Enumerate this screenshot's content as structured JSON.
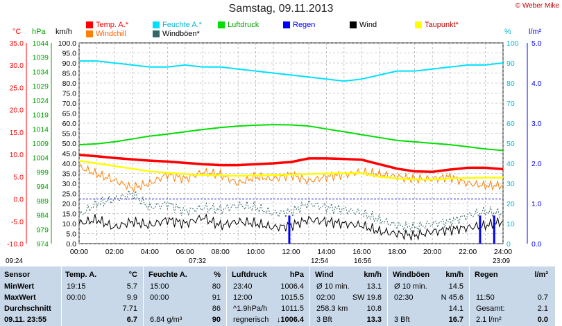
{
  "title": "Samstag, 09.11.2013",
  "copyright": "© Weber Mike",
  "legend": [
    {
      "label": "Temp. A.*",
      "color": "#ff0000"
    },
    {
      "label": "Feuchte A.*",
      "color": "#00e0ff"
    },
    {
      "label": "Luftdruck",
      "color": "#00dd00"
    },
    {
      "label": "Regen",
      "color": "#0000ff"
    },
    {
      "label": "Wind",
      "color": "#000000"
    },
    {
      "label": "Taupunkt*",
      "color": "#ffff00"
    },
    {
      "label": "Windchill",
      "color": "#ff8000"
    },
    {
      "label": "Windböen*",
      "color": "#336666"
    }
  ],
  "axis_heads": {
    "temp": "°C",
    "hpa": "hPa",
    "kmh": "km/h",
    "pct": "%",
    "rain": "l/m²"
  },
  "time_marks": {
    "left": "09:24",
    "sunrise": "07:32",
    "moonrise": "12:54",
    "sunset": "16:56",
    "moonset": "23:09"
  },
  "chart_data": {
    "type": "line",
    "x_labels": [
      "00:00",
      "02:00",
      "04:00",
      "06:00",
      "08:00",
      "10:00",
      "12:00",
      "14:00",
      "16:00",
      "18:00",
      "20:00",
      "22:00",
      "24:00"
    ],
    "axes": {
      "temp": {
        "min": -10,
        "max": 35,
        "ticks": [
          "35.0",
          "30.0",
          "25.0",
          "20.0",
          "15.0",
          "10.0",
          "5.0",
          "0.0",
          "-5.0",
          "-10.0"
        ]
      },
      "hpa": {
        "ticks": [
          "1044",
          "1039",
          "1034",
          "1029",
          "1024",
          "1019",
          "1014",
          "1009",
          "1004",
          "999",
          "994",
          "989",
          "984",
          "979",
          "974"
        ]
      },
      "kmh": {
        "min": 0,
        "max": 100,
        "ticks": [
          "100.0",
          "95.0",
          "90.0",
          "85.0",
          "80.0",
          "75.0",
          "70.0",
          "65.0",
          "60.0",
          "55.0",
          "50.0",
          "45.0",
          "40.0",
          "35.0",
          "30.0",
          "25.0",
          "20.0",
          "15.0",
          "10.0",
          "5.0",
          "0.0"
        ]
      },
      "pct": {
        "ticks": [
          "100",
          "90",
          "80",
          "70",
          "60",
          "50",
          "40",
          "30",
          "20",
          "10",
          "0"
        ]
      },
      "rain": {
        "ticks": [
          "5.0",
          "4.0",
          "3.0",
          "2.0",
          "1.0",
          "0.0"
        ]
      }
    },
    "series": [
      {
        "name": "Feuchte A.*",
        "axis": "pct",
        "x": [
          0,
          1,
          2,
          3,
          4,
          5,
          6,
          7,
          8,
          9,
          10,
          11,
          12,
          13,
          14,
          15,
          16,
          17,
          18,
          19,
          20,
          21,
          22,
          23,
          24
        ],
        "values": [
          91,
          91,
          90,
          89,
          88,
          88,
          89,
          88,
          88,
          87,
          86,
          85,
          84,
          83,
          82,
          81,
          82,
          84,
          86,
          86,
          87,
          88,
          89,
          89,
          90
        ]
      },
      {
        "name": "Luftdruck",
        "axis": "hpa",
        "x": [
          0,
          1,
          2,
          3,
          4,
          5,
          6,
          7,
          8,
          9,
          10,
          11,
          12,
          13,
          14,
          15,
          16,
          17,
          18,
          19,
          20,
          21,
          22,
          23,
          24
        ],
        "values": [
          1008.5,
          1008.8,
          1009.5,
          1010.5,
          1011.5,
          1012.2,
          1013,
          1013.8,
          1014.5,
          1015,
          1015.3,
          1015.5,
          1015.4,
          1015,
          1014,
          1013,
          1012,
          1011,
          1010,
          1009.5,
          1009,
          1008.5,
          1007.8,
          1007,
          1006.5
        ]
      },
      {
        "name": "Temp. A.*",
        "axis": "temp",
        "x": [
          0,
          1,
          2,
          3,
          4,
          5,
          6,
          7,
          8,
          9,
          10,
          11,
          12,
          13,
          14,
          15,
          16,
          17,
          18,
          19,
          20,
          21,
          22,
          23,
          24
        ],
        "values": [
          9.9,
          9.6,
          9.2,
          8.9,
          8.6,
          8.4,
          8.1,
          7.8,
          7.6,
          7.6,
          7.8,
          8.0,
          8.3,
          9.1,
          9.1,
          9.0,
          8.8,
          7.8,
          6.8,
          6.2,
          6.1,
          6.6,
          7.0,
          7.0,
          6.7
        ]
      },
      {
        "name": "Taupunkt*",
        "axis": "temp",
        "x": [
          0,
          1,
          2,
          3,
          4,
          5,
          6,
          7,
          8,
          9,
          10,
          11,
          12,
          13,
          14,
          15,
          16,
          17,
          18,
          19,
          20,
          21,
          22,
          23,
          24
        ],
        "values": [
          8.6,
          8.0,
          7.4,
          6.8,
          6.2,
          5.9,
          5.6,
          5.4,
          5.3,
          5.2,
          5.3,
          5.4,
          5.5,
          5.6,
          5.7,
          5.8,
          5.8,
          5.0,
          4.6,
          4.4,
          4.4,
          4.6,
          4.7,
          4.8,
          4.8
        ]
      },
      {
        "name": "Windchill",
        "axis": "temp",
        "x": [
          0,
          1,
          2,
          3,
          4,
          5,
          6,
          7,
          8,
          9,
          10,
          11,
          12,
          13,
          14,
          15,
          16,
          17,
          18,
          19,
          20,
          21,
          22,
          23,
          24
        ],
        "values": [
          7.2,
          5.6,
          4.2,
          2.5,
          3.5,
          5.5,
          4.5,
          6.0,
          5.5,
          3.5,
          5.0,
          4.5,
          5.5,
          4.0,
          5.0,
          5.5,
          6.0,
          5.5,
          5.0,
          4.5,
          4.5,
          5.0,
          3.5,
          3.0,
          3.0
        ]
      },
      {
        "name": "Wind",
        "axis": "kmh",
        "x": [
          0,
          1,
          2,
          3,
          4,
          5,
          6,
          7,
          8,
          9,
          10,
          11,
          12,
          13,
          14,
          15,
          16,
          17,
          18,
          19,
          20,
          21,
          22,
          23,
          24
        ],
        "values": [
          10,
          12,
          8,
          11,
          9,
          12,
          10,
          13,
          9,
          11,
          10,
          8,
          9,
          12,
          11,
          10,
          9,
          6,
          5,
          4,
          6,
          7,
          8,
          9,
          11
        ]
      },
      {
        "name": "Windböen*",
        "axis": "kmh",
        "x": [
          0,
          1,
          2,
          3,
          4,
          5,
          6,
          7,
          8,
          9,
          10,
          11,
          12,
          13,
          14,
          15,
          16,
          17,
          18,
          19,
          20,
          21,
          22,
          23,
          24
        ],
        "values": [
          14,
          20,
          22,
          25,
          18,
          20,
          16,
          18,
          17,
          19,
          18,
          15,
          16,
          20,
          18,
          17,
          15,
          12,
          9,
          8,
          10,
          11,
          14,
          16,
          15
        ]
      }
    ],
    "rain_bars": [
      {
        "x": 11.9,
        "value": 0.7
      },
      {
        "x": 22.7,
        "value": 0.7
      },
      {
        "x": 23.5,
        "value": 0.7
      }
    ]
  },
  "table": {
    "sensor": {
      "header": "Sensor",
      "rows": [
        "MinWert",
        "MaxWert",
        "Durchschnitt",
        "09.11. 23:55"
      ]
    },
    "temp": {
      "header": "Temp. A.",
      "unit": "°C",
      "rows": [
        [
          "19:15",
          "5.7"
        ],
        [
          "00:00",
          "9.9"
        ],
        [
          "",
          "7.71"
        ],
        [
          "",
          "6.7"
        ]
      ]
    },
    "feuchte": {
      "header": "Feuchte A.",
      "unit": "%",
      "rows": [
        [
          "15:00",
          "80"
        ],
        [
          "00:00",
          "91"
        ],
        [
          "",
          "86"
        ],
        [
          "6.84 g/m³",
          "90"
        ]
      ]
    },
    "luft": {
      "header": "Luftdruck",
      "unit": "hPa",
      "rows": [
        [
          "23:40",
          "1006.4"
        ],
        [
          "12:00",
          "1015.5"
        ],
        [
          "^1.9hPa/h",
          "1011.5"
        ],
        [
          "regnerisch",
          "↓1006.4"
        ]
      ]
    },
    "wind": {
      "header": "Wind",
      "unit": "km/h",
      "rows": [
        [
          "Ø 10 min.",
          "13.1"
        ],
        [
          "02:00",
          "SW 19.8"
        ],
        [
          "258.3 km",
          "10.8"
        ],
        [
          "3 Bft",
          "13.3"
        ]
      ]
    },
    "boen": {
      "header": "Windböen",
      "unit": "km/h",
      "rows": [
        [
          "Ø 10 min.",
          "14.5"
        ],
        [
          "02:30",
          "N 45.6"
        ],
        [
          "",
          "14.1"
        ],
        [
          "3 Bft",
          "16.7"
        ]
      ]
    },
    "regen": {
      "header": "Regen",
      "unit": "l/m²",
      "rows": [
        [
          "11:50",
          "0.7"
        ],
        [
          "Gesamt:",
          "2.1"
        ],
        [
          "2.1 l/m²",
          "0.0"
        ]
      ]
    }
  }
}
